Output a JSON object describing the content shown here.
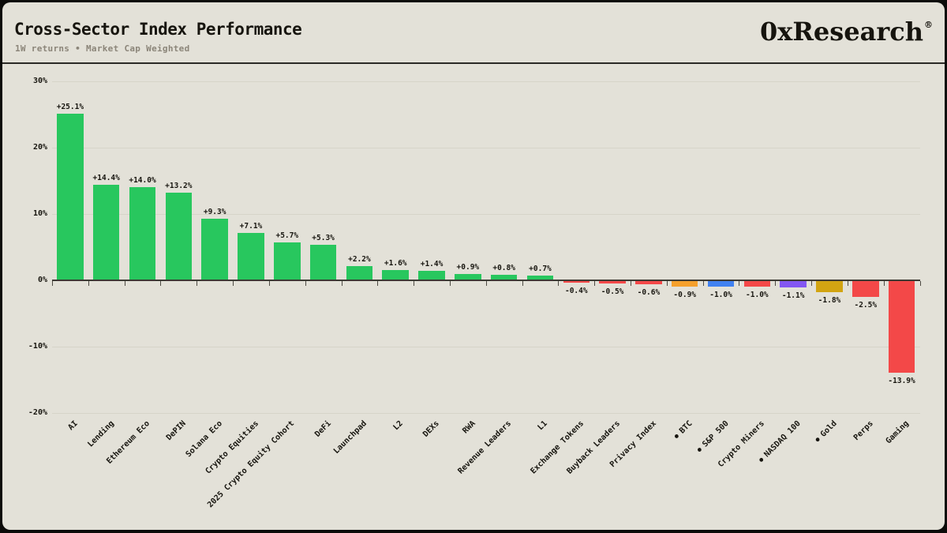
{
  "header": {
    "title": "Cross-Sector Index Performance",
    "subtitle": "1W returns • Market Cap Weighted",
    "brand": "0xResearch",
    "registered_mark": "®"
  },
  "colors": {
    "green": "#28c75e",
    "red": "#f34848",
    "orange": "#f5a02c",
    "blue": "#4181f0",
    "purple": "#8356f2",
    "gold": "#d2a412",
    "background": "#e3e1d8",
    "frame": "#0b0b09",
    "gridline": "#d6d4c9",
    "axis": "#3c3a34",
    "text": "#17150f",
    "subtitle_text": "#8b8579"
  },
  "chart_data": {
    "type": "bar",
    "title": "Cross-Sector Index Performance",
    "subtitle": "1W returns • Market Cap Weighted",
    "unit": "%",
    "ylim": [
      -20,
      30
    ],
    "yticks": [
      30,
      20,
      10,
      0,
      -10,
      -20
    ],
    "ytick_labels": [
      "30%",
      "20%",
      "10%",
      "0%",
      "-10%",
      "-20%"
    ],
    "grid": true,
    "legend": "none",
    "benchmark_marker": "●",
    "categories": [
      "AI",
      "Lending",
      "Ethereum Eco",
      "DePIN",
      "Solana Eco",
      "Crypto Equities",
      "2025 Crypto Equity Cohort",
      "DeFi",
      "Launchpad",
      "L2",
      "DEXs",
      "RWA",
      "Revenue Leaders",
      "L1",
      "Exchange Tokens",
      "Buyback Leaders",
      "Privacy Index",
      "BTC",
      "S&P 500",
      "Crypto Miners",
      "NASDAQ 100",
      "Gold",
      "Perps",
      "Gaming"
    ],
    "values": [
      25.1,
      14.4,
      14.0,
      13.2,
      9.3,
      7.1,
      5.7,
      5.3,
      2.2,
      1.6,
      1.4,
      0.9,
      0.8,
      0.7,
      -0.4,
      -0.5,
      -0.6,
      -0.9,
      -1.0,
      -1.0,
      -1.1,
      -1.8,
      -2.5,
      -13.9
    ],
    "bars": [
      {
        "category": "AI",
        "value": 25.1,
        "label": "+25.1%",
        "color": "green",
        "benchmark": false
      },
      {
        "category": "Lending",
        "value": 14.4,
        "label": "+14.4%",
        "color": "green",
        "benchmark": false
      },
      {
        "category": "Ethereum Eco",
        "value": 14.0,
        "label": "+14.0%",
        "color": "green",
        "benchmark": false
      },
      {
        "category": "DePIN",
        "value": 13.2,
        "label": "+13.2%",
        "color": "green",
        "benchmark": false
      },
      {
        "category": "Solana Eco",
        "value": 9.3,
        "label": "+9.3%",
        "color": "green",
        "benchmark": false
      },
      {
        "category": "Crypto Equities",
        "value": 7.1,
        "label": "+7.1%",
        "color": "green",
        "benchmark": false
      },
      {
        "category": "2025 Crypto Equity Cohort",
        "value": 5.7,
        "label": "+5.7%",
        "color": "green",
        "benchmark": false
      },
      {
        "category": "DeFi",
        "value": 5.3,
        "label": "+5.3%",
        "color": "green",
        "benchmark": false
      },
      {
        "category": "Launchpad",
        "value": 2.2,
        "label": "+2.2%",
        "color": "green",
        "benchmark": false
      },
      {
        "category": "L2",
        "value": 1.6,
        "label": "+1.6%",
        "color": "green",
        "benchmark": false
      },
      {
        "category": "DEXs",
        "value": 1.4,
        "label": "+1.4%",
        "color": "green",
        "benchmark": false
      },
      {
        "category": "RWA",
        "value": 0.9,
        "label": "+0.9%",
        "color": "green",
        "benchmark": false
      },
      {
        "category": "Revenue Leaders",
        "value": 0.8,
        "label": "+0.8%",
        "color": "green",
        "benchmark": false
      },
      {
        "category": "L1",
        "value": 0.7,
        "label": "+0.7%",
        "color": "green",
        "benchmark": false
      },
      {
        "category": "Exchange Tokens",
        "value": -0.4,
        "label": "-0.4%",
        "color": "red",
        "benchmark": false
      },
      {
        "category": "Buyback Leaders",
        "value": -0.5,
        "label": "-0.5%",
        "color": "red",
        "benchmark": false
      },
      {
        "category": "Privacy Index",
        "value": -0.6,
        "label": "-0.6%",
        "color": "red",
        "benchmark": false
      },
      {
        "category": "BTC",
        "value": -0.9,
        "label": "-0.9%",
        "color": "orange",
        "benchmark": true
      },
      {
        "category": "S&P 500",
        "value": -1.0,
        "label": "-1.0%",
        "color": "blue",
        "benchmark": true
      },
      {
        "category": "Crypto Miners",
        "value": -1.0,
        "label": "-1.0%",
        "color": "red",
        "benchmark": false
      },
      {
        "category": "NASDAQ 100",
        "value": -1.1,
        "label": "-1.1%",
        "color": "purple",
        "benchmark": true
      },
      {
        "category": "Gold",
        "value": -1.8,
        "label": "-1.8%",
        "color": "gold",
        "benchmark": true
      },
      {
        "category": "Perps",
        "value": -2.5,
        "label": "-2.5%",
        "color": "red",
        "benchmark": false
      },
      {
        "category": "Gaming",
        "value": -13.9,
        "label": "-13.9%",
        "color": "red",
        "benchmark": false
      }
    ]
  }
}
